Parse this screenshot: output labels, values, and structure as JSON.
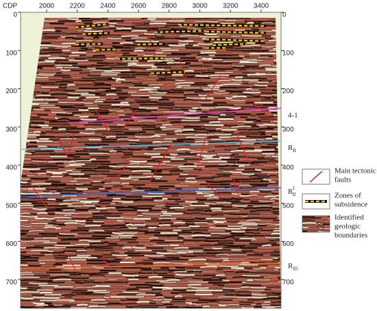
{
  "figure": {
    "x_axis": {
      "label": "CDP",
      "lim": [
        1830,
        3530
      ],
      "ticks": [
        2000,
        2200,
        2400,
        2600,
        2800,
        3000,
        3200,
        3400
      ]
    },
    "y_axis": {
      "lim": [
        0,
        775
      ],
      "ticks": [
        0,
        100,
        200,
        300,
        400,
        500,
        600,
        700
      ]
    },
    "horizons": [
      {
        "base": "4-1",
        "y": 270
      },
      {
        "base": "R",
        "sub": "II",
        "y": 355
      },
      {
        "base": "R",
        "sup": "I",
        "sub": "II",
        "y": 470
      },
      {
        "base": "R",
        "sub": "III",
        "y": 665
      }
    ],
    "legend": [
      {
        "lines": [
          "Main tectonic",
          "faults"
        ]
      },
      {
        "lines": [
          "Zones of",
          "subsidence"
        ]
      },
      {
        "lines": [
          "Identified",
          "geologic",
          "boundaries"
        ]
      }
    ],
    "legend_swatch_label": {
      "base": "R",
      "sub": "II"
    }
  }
}
